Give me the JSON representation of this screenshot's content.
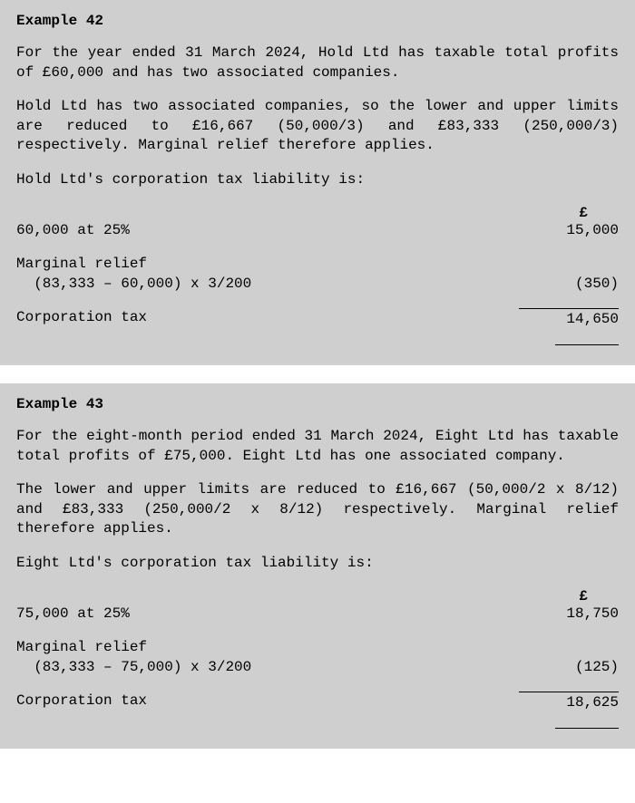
{
  "example42": {
    "title": "Example 42",
    "p1": "For the year ended 31 March 2024, Hold Ltd has taxable total profits of £60,000 and has two associated companies.",
    "p2": "Hold Ltd has two associated companies, so the lower and upper limits are reduced to £16,667 (50,000/3) and £83,333 (250,000/3) respectively. Marginal relief therefore applies.",
    "p3": "Hold Ltd's corporation tax liability is:",
    "currency": "£",
    "line1_label": "60,000 at 25%",
    "line1_value": "15,000",
    "mr_label": "Marginal relief",
    "mr_calc": "  (83,333 – 60,000) x 3/200",
    "mr_value": "(350)",
    "ct_label": "Corporation tax",
    "ct_value": "14,650"
  },
  "example43": {
    "title": "Example 43",
    "p1": "For the eight-month period ended 31 March 2024, Eight Ltd has taxable total profits of £75,000. Eight Ltd has one associated company.",
    "p2": "The lower and upper limits are reduced to £16,667 (50,000/2 x 8/12) and £83,333 (250,000/2 x 8/12) respectively. Marginal relief therefore applies.",
    "p3": "Eight Ltd's corporation tax liability is:",
    "currency": "£",
    "line1_label": "75,000 at 25%",
    "line1_value": "18,750",
    "mr_label": "Marginal relief",
    "mr_calc": "  (83,333 – 75,000) x 3/200",
    "mr_value": "(125)",
    "ct_label": "Corporation tax",
    "ct_value": "18,625"
  }
}
